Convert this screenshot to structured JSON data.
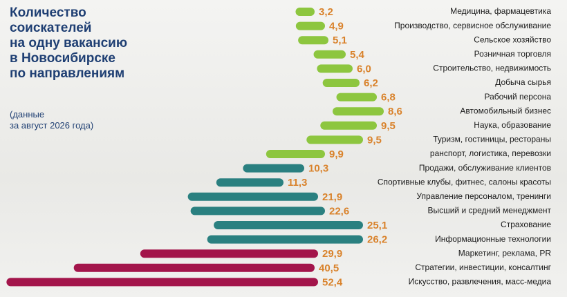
{
  "chart_data": {
    "type": "bar",
    "title": "Количество\nсоискателей\nна одну вакансию\nв Новосибирске\nпо направлениям",
    "subtitle": "(данные\nза август 2026 года)",
    "categories": [
      "Медицина, фармацевтика",
      "Производство, сервисное обслуживание",
      "Сельское хозяйство",
      "Розничная торговля",
      "Строительство, недвижимость",
      "Добыча сырья",
      "Рабочий персона",
      "Автомобильный бизнес",
      "Наука, образование",
      "Туризм, гостиницы, рестораны",
      "ранспорт, логистика, перевозки",
      "Продажи, обслуживание клиентов",
      "Спортивные клубы, фитнес, салоны красоты",
      "Управление персоналом, тренинги",
      "Высший и средний менеджмент",
      "Страхование",
      "Информационные технологии",
      "Маркетинг, реклама, PR",
      "Стратегии, инвестиции, консалтинг",
      "Искусство, развлечения, масс-медиа"
    ],
    "values": [
      3.2,
      4.9,
      5.1,
      5.4,
      6.0,
      6.2,
      6.8,
      8.6,
      9.5,
      9.5,
      9.9,
      10.3,
      11.3,
      21.9,
      22.6,
      25.1,
      26.2,
      29.9,
      40.5,
      52.4
    ],
    "value_labels": [
      "3,2",
      "4,9",
      "5,1",
      "5,4",
      "6,0",
      "6,2",
      "6,8",
      "8,6",
      "9,5",
      "9,5",
      "9,9",
      "10,3",
      "11,3",
      "21,9",
      "22,6",
      "25,1",
      "26,2",
      "29,9",
      "40,5",
      "52,4"
    ],
    "colors": [
      "#8dc63f",
      "#8dc63f",
      "#8dc63f",
      "#8dc63f",
      "#8dc63f",
      "#8dc63f",
      "#8dc63f",
      "#8dc63f",
      "#8dc63f",
      "#8dc63f",
      "#8dc63f",
      "#2a8080",
      "#2a8080",
      "#2a8080",
      "#2a8080",
      "#2a8080",
      "#2a8080",
      "#a3154b",
      "#a3154b",
      "#a3154b"
    ]
  }
}
